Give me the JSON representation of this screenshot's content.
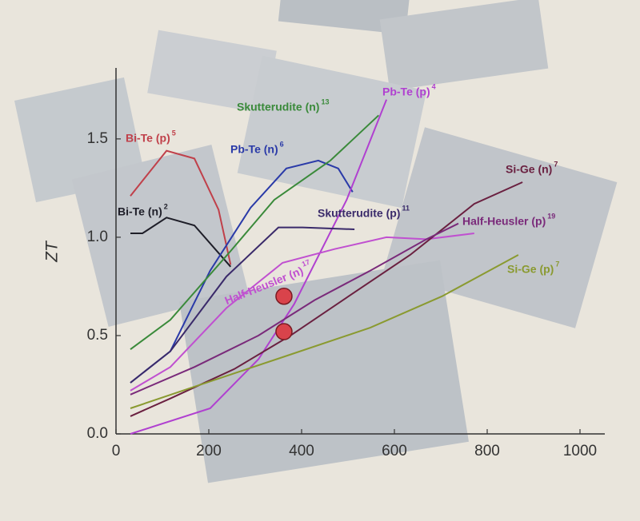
{
  "chart_data": {
    "type": "line",
    "ylabel": "ZT",
    "xlim": [
      0,
      1050
    ],
    "ylim": [
      0,
      1.8
    ],
    "xticks": [
      0,
      200,
      400,
      600,
      800,
      1000
    ],
    "yticks": [
      {
        "value": 0,
        "label": "0.0"
      },
      {
        "value": 0.5,
        "label": "0.5"
      },
      {
        "value": 1,
        "label": "1.0"
      },
      {
        "value": 1.5,
        "label": "1.5"
      }
    ],
    "series": [
      {
        "name": "Bi-Te (p)",
        "ref": "5",
        "color": "#c0404a",
        "x": [
          31,
          109,
          169,
          221,
          247
        ],
        "values": [
          1.21,
          1.44,
          1.4,
          1.14,
          0.86
        ]
      },
      {
        "name": "Bi-Te (n)",
        "ref": "2",
        "color": "#1e1e28",
        "x": [
          31,
          57,
          109,
          169,
          247
        ],
        "values": [
          1.02,
          1.02,
          1.1,
          1.06,
          0.85
        ]
      },
      {
        "name": "Pb-Te (n)",
        "ref": "6",
        "color": "#2a3aa8",
        "x": [
          31,
          117,
          203,
          290,
          367,
          436,
          479,
          510
        ],
        "values": [
          0.26,
          0.42,
          0.83,
          1.15,
          1.35,
          1.39,
          1.35,
          1.23
        ]
      },
      {
        "name": "Skutterudite (n)",
        "ref": "13",
        "color": "#3a8a3a",
        "x": [
          31,
          117,
          247,
          341,
          462,
          566
        ],
        "values": [
          0.43,
          0.58,
          0.93,
          1.19,
          1.39,
          1.62
        ]
      },
      {
        "name": "Pb-Te (p)",
        "ref": "4",
        "color": "#b040d0",
        "x": [
          31,
          203,
          307,
          384,
          497,
          583
        ],
        "values": [
          0.0,
          0.13,
          0.38,
          0.66,
          1.19,
          1.7
        ]
      },
      {
        "name": "Skutterudite (p)",
        "ref": "11",
        "color": "#3a2a6a",
        "x": [
          31,
          117,
          238,
          350,
          402,
          514
        ],
        "values": [
          0.26,
          0.42,
          0.8,
          1.05,
          1.05,
          1.04
        ]
      },
      {
        "name": "Half-Heusler (n)",
        "ref": "17",
        "color": "#c050d0",
        "x": [
          31,
          117,
          238,
          359,
          471,
          583,
          669,
          772
        ],
        "values": [
          0.22,
          0.34,
          0.64,
          0.87,
          0.94,
          1.0,
          0.99,
          1.02
        ]
      },
      {
        "name": "Si-Ge (n)",
        "ref": "7",
        "color": "#6a2040",
        "x": [
          31,
          117,
          255,
          376,
          514,
          634,
          772,
          876
        ],
        "values": [
          0.09,
          0.18,
          0.33,
          0.5,
          0.72,
          0.91,
          1.17,
          1.28
        ]
      },
      {
        "name": "Half-Heusler (p)",
        "ref": "19",
        "color": "#7a2a7a",
        "x": [
          31,
          169,
          307,
          428,
          548,
          669,
          738
        ],
        "values": [
          0.2,
          0.34,
          0.5,
          0.68,
          0.83,
          0.99,
          1.07
        ]
      },
      {
        "name": "Si-Ge (p)",
        "ref": "7",
        "color": "#8a9a30",
        "x": [
          31,
          169,
          359,
          548,
          703,
          867
        ],
        "values": [
          0.13,
          0.24,
          0.39,
          0.54,
          0.7,
          0.91
        ]
      }
    ],
    "markers": [
      {
        "x": 362,
        "y": 0.7
      },
      {
        "x": 362,
        "y": 0.52
      }
    ]
  }
}
